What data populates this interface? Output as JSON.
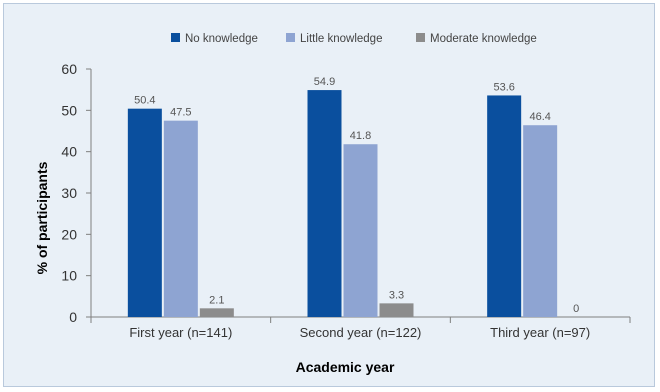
{
  "chart_data": {
    "type": "bar",
    "categories": [
      "First year (n=141)",
      "Second year (n=122)",
      "Third year (n=97)"
    ],
    "series": [
      {
        "name": "No knowledge",
        "values": [
          50.4,
          54.9,
          53.6
        ],
        "color": "#0a4f9e"
      },
      {
        "name": "Little knowledge",
        "values": [
          47.5,
          41.8,
          46.4
        ],
        "color": "#8ea4d2"
      },
      {
        "name": "Moderate knowledge",
        "values": [
          2.1,
          3.3,
          0
        ],
        "color": "#8c8c8c"
      }
    ],
    "value_labels": [
      [
        "50.4",
        "54.9",
        "53.6"
      ],
      [
        "47.5",
        "41.8",
        "46.4"
      ],
      [
        "2.1",
        "3.3",
        "0"
      ]
    ],
    "xlabel": "Academic year",
    "ylabel": "% of participants",
    "ylim": [
      0,
      60
    ],
    "yticks": [
      0,
      10,
      20,
      30,
      40,
      50,
      60
    ],
    "legend_position": "top",
    "grid": false
  }
}
